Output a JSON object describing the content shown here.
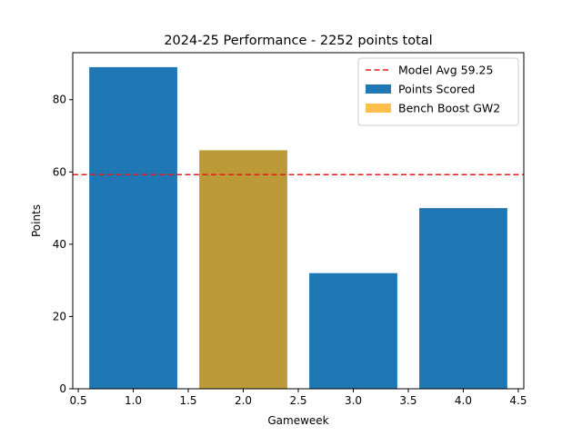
{
  "chart_data": {
    "type": "bar",
    "title": "2024-25 Performance - 2252 points total",
    "xlabel": "Gameweek",
    "ylabel": "Points",
    "xlim": [
      0.45,
      4.55
    ],
    "ylim": [
      0,
      93
    ],
    "x_ticks": [
      "0.5",
      "1.0",
      "1.5",
      "2.0",
      "2.5",
      "3.0",
      "3.5",
      "4.0",
      "4.5"
    ],
    "y_ticks": [
      "0",
      "20",
      "40",
      "60",
      "80"
    ],
    "grid": false,
    "legend_position": "top-right",
    "bar_width": 0.8,
    "bars": [
      {
        "x": 1,
        "value": 89,
        "color": "#1f77b4"
      },
      {
        "x": 2,
        "value": 66,
        "color": "#bc9a38"
      },
      {
        "x": 3,
        "value": 32,
        "color": "#1f77b4"
      },
      {
        "x": 4,
        "value": 50,
        "color": "#1f77b4"
      }
    ],
    "reference_line": {
      "value": 59.25,
      "color": "#e41a1c",
      "style": "dashed"
    },
    "legend": [
      {
        "label": "Model Avg 59.25",
        "kind": "dashed-line",
        "color": "#e41a1c"
      },
      {
        "label": "Points Scored",
        "kind": "patch",
        "color": "#1f77b4"
      },
      {
        "label": "Bench Boost GW2",
        "kind": "patch",
        "color": "#ffbf4d"
      }
    ]
  }
}
